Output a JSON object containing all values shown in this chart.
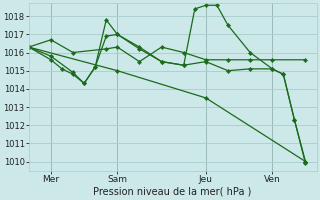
{
  "background_color": "#cce8e8",
  "grid_color": "#aacccc",
  "line_color": "#1a6b1a",
  "xlabel": "Pression niveau de la mer( hPa )",
  "ylim": [
    1009.5,
    1018.7
  ],
  "yticks": [
    1010,
    1011,
    1012,
    1013,
    1014,
    1015,
    1016,
    1017,
    1018
  ],
  "xlim": [
    0,
    13
  ],
  "vlines_x": [
    1.0,
    4.0,
    8.0,
    11.0
  ],
  "vlines_labels": [
    "Mer",
    "Sam",
    "Jeu",
    "Ven"
  ],
  "series": [
    {
      "x": [
        0.0,
        1.0,
        2.0,
        3.5,
        4.0,
        5.0,
        6.0,
        7.0,
        8.0,
        9.0,
        10.0,
        11.0,
        12.5
      ],
      "y": [
        1016.3,
        1016.7,
        1016.0,
        1016.2,
        1016.3,
        1015.5,
        1016.3,
        1016.0,
        1015.6,
        1015.6,
        1015.6,
        1015.6,
        1015.6
      ]
    },
    {
      "x": [
        0.0,
        1.0,
        2.0,
        2.5,
        3.0,
        3.5,
        4.0,
        5.0,
        6.0,
        7.0,
        7.5,
        8.0,
        8.5,
        9.0,
        10.0,
        11.0,
        11.5,
        12.0,
        12.5
      ],
      "y": [
        1016.3,
        1015.8,
        1014.9,
        1014.3,
        1015.2,
        1017.8,
        1017.0,
        1016.2,
        1015.5,
        1015.3,
        1018.4,
        1018.6,
        1018.6,
        1017.5,
        1016.0,
        1015.1,
        1014.8,
        1012.3,
        1010.0
      ]
    },
    {
      "x": [
        0.0,
        1.0,
        1.5,
        2.0,
        2.5,
        3.0,
        3.5,
        4.0,
        5.0,
        6.0,
        7.0,
        8.0,
        9.0,
        10.0,
        11.0,
        11.5,
        12.0,
        12.5
      ],
      "y": [
        1016.3,
        1015.6,
        1015.1,
        1014.8,
        1014.3,
        1015.2,
        1016.9,
        1017.0,
        1016.3,
        1015.5,
        1015.3,
        1015.5,
        1015.0,
        1015.1,
        1015.1,
        1014.8,
        1012.3,
        1009.9
      ]
    },
    {
      "x": [
        0.0,
        4.0,
        8.0,
        12.5
      ],
      "y": [
        1016.3,
        1015.0,
        1013.5,
        1010.0
      ]
    }
  ]
}
